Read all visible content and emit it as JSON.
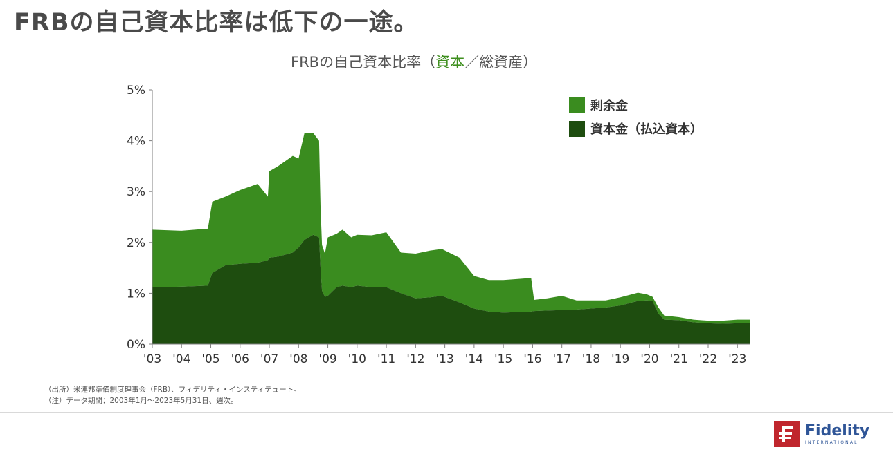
{
  "headline": "FRBの自己資本比率は低下の一途。",
  "chart_title": {
    "prefix": "FRBの自己資本比率（",
    "highlight": "資本",
    "suffix": "／総資産）"
  },
  "colors": {
    "surplus": "#3a8c1f",
    "paid_in": "#1e4d0f",
    "title_highlight": "#3f8f1f",
    "logo_red": "#c0262d",
    "logo_blue": "#2f5597"
  },
  "footnotes": [
    "（出所）米連邦準備制度理事会（FRB）、フィデリティ・インスティテュート。",
    "（注）データ期間：2003年1月～2023年5月31日、週次。"
  ],
  "logo": {
    "word": "Fidelity",
    "sub": "INTERNATIONAL",
    "icon": "fidelity-f-icon"
  },
  "chart_data": {
    "type": "area",
    "stacked": true,
    "xlim": [
      2003.0,
      2023.42
    ],
    "ylim": [
      0,
      5
    ],
    "y_ticks": [
      "0%",
      "1%",
      "2%",
      "3%",
      "4%",
      "5%"
    ],
    "x_ticks": [
      "'03",
      "'04",
      "'05",
      "'06",
      "'07",
      "'08",
      "'09",
      "'10",
      "'11",
      "'12",
      "'13",
      "'14",
      "'15",
      "'16",
      "'17",
      "'18",
      "'19",
      "'20",
      "'21",
      "'22",
      "'23"
    ],
    "legend": [
      "剰余金",
      "資本金（払込資本）"
    ],
    "legend_position": "top-right",
    "grid": false,
    "x": [
      2003.0,
      2004.0,
      2004.9,
      2005.05,
      2005.5,
      2006.0,
      2006.6,
      2006.95,
      2007.0,
      2007.3,
      2007.8,
      2008.0,
      2008.2,
      2008.5,
      2008.7,
      2008.75,
      2008.8,
      2008.9,
      2009.0,
      2009.3,
      2009.5,
      2009.8,
      2010.0,
      2010.5,
      2011.0,
      2011.5,
      2012.0,
      2012.5,
      2012.9,
      2013.5,
      2014.0,
      2014.5,
      2015.0,
      2015.5,
      2015.95,
      2016.05,
      2016.5,
      2017.0,
      2017.5,
      2018.0,
      2018.5,
      2019.0,
      2019.6,
      2019.9,
      2020.1,
      2020.3,
      2020.5,
      2021.0,
      2021.5,
      2022.0,
      2022.5,
      2023.0,
      2023.42
    ],
    "series": [
      {
        "name": "資本金（払込資本）",
        "values": [
          1.12,
          1.13,
          1.15,
          1.4,
          1.55,
          1.58,
          1.6,
          1.65,
          1.7,
          1.72,
          1.8,
          1.9,
          2.05,
          2.15,
          2.1,
          1.5,
          1.05,
          0.93,
          0.95,
          1.12,
          1.15,
          1.12,
          1.15,
          1.12,
          1.12,
          1.0,
          0.9,
          0.92,
          0.95,
          0.82,
          0.7,
          0.64,
          0.62,
          0.63,
          0.64,
          0.65,
          0.66,
          0.67,
          0.68,
          0.7,
          0.72,
          0.76,
          0.85,
          0.86,
          0.85,
          0.6,
          0.48,
          0.47,
          0.43,
          0.41,
          0.4,
          0.41,
          0.42
        ]
      },
      {
        "name": "剰余金",
        "values": [
          1.13,
          1.1,
          1.12,
          1.4,
          1.35,
          1.45,
          1.55,
          1.25,
          1.7,
          1.78,
          1.9,
          1.75,
          2.1,
          2.0,
          1.9,
          1.2,
          0.9,
          0.85,
          1.15,
          1.05,
          1.1,
          0.98,
          1.0,
          1.02,
          1.08,
          0.8,
          0.88,
          0.92,
          0.92,
          0.88,
          0.64,
          0.62,
          0.64,
          0.65,
          0.66,
          0.22,
          0.24,
          0.28,
          0.18,
          0.16,
          0.14,
          0.16,
          0.16,
          0.12,
          0.08,
          0.12,
          0.08,
          0.06,
          0.05,
          0.05,
          0.06,
          0.07,
          0.06
        ]
      }
    ]
  }
}
